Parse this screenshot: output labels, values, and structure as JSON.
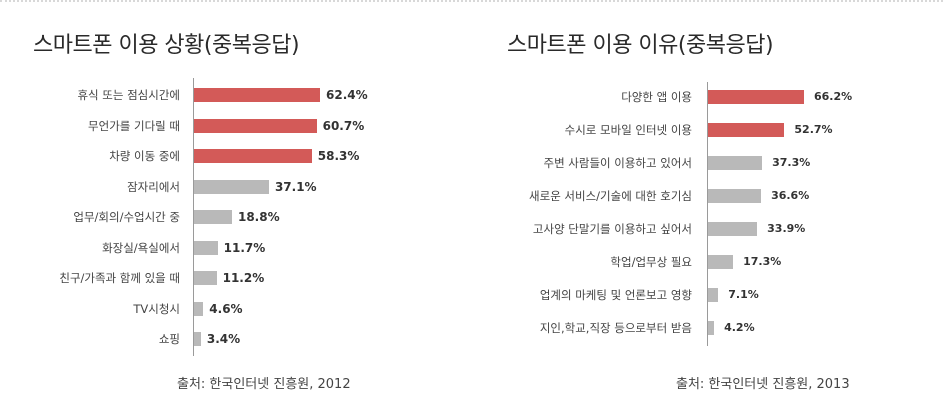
{
  "colors": {
    "highlight": "#d35a58",
    "normal": "#b9b9b9",
    "axis": "#9a9a9a"
  },
  "left": {
    "title": "스마트폰 이용 상황(중복응답)",
    "source": "출처: 한국인터넷 진흥원, 2012"
  },
  "right": {
    "title": "스마트폰 이용 이유(중복응답)",
    "source": "출처: 한국인터넷 진흥원, 2013"
  },
  "chart_data": [
    {
      "type": "bar",
      "orientation": "horizontal",
      "title": "스마트폰 이용 상황(중복응답)",
      "categories": [
        "휴식 또는 점심시간에",
        "무언가를 기다릴 때",
        "차량 이동 중에",
        "잠자리에서",
        "업무/회의/수업시간 중",
        "화장실/욕실에서",
        "친구/가족과 함께 있을 때",
        "TV시청시",
        "쇼핑"
      ],
      "values": [
        62.4,
        60.7,
        58.3,
        37.1,
        18.8,
        11.7,
        11.2,
        4.6,
        3.4
      ],
      "value_labels": [
        "62.4%",
        "60.7%",
        "58.3%",
        "37.1%",
        "18.8%",
        "11.7%",
        "11.2%",
        "4.6%",
        "3.4%"
      ],
      "highlighted": [
        true,
        true,
        true,
        false,
        false,
        false,
        false,
        false,
        false
      ],
      "unit": "%",
      "grid": false,
      "source": "출처: 한국인터넷 진흥원, 2012"
    },
    {
      "type": "bar",
      "orientation": "horizontal",
      "title": "스마트폰 이용 이유(중복응답)",
      "categories": [
        "다양한 앱 이용",
        "수시로 모바일 인터넷 이용",
        "주변 사람들이 이용하고 있어서",
        "새로운 서비스/기술에 대한 호기심",
        "고사양 단말기를 이용하고 싶어서",
        "학업/업무상 필요",
        "업계의 마케팅 및 언론보고 영향",
        "지인,학교,직장 등으로부터 받음"
      ],
      "values": [
        66.2,
        52.7,
        37.3,
        36.6,
        33.9,
        17.3,
        7.1,
        4.2
      ],
      "value_labels": [
        "66.2%",
        "52.7%",
        "37.3%",
        "36.6%",
        "33.9%",
        "17.3%",
        "7.1%",
        "4.2%"
      ],
      "highlighted": [
        true,
        true,
        false,
        false,
        false,
        false,
        false,
        false
      ],
      "unit": "%",
      "grid": false,
      "source": "출처: 한국인터넷 진흥원, 2013"
    }
  ]
}
